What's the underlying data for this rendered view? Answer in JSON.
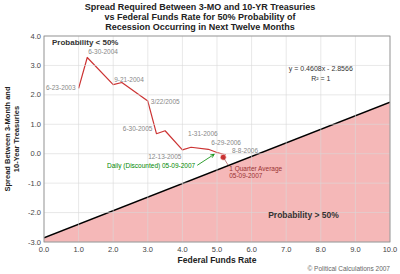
{
  "chart_data": {
    "type": "line",
    "title": "Spread Required Between 3-MO and 10-YR Treasuries\nvs Federal Funds Rate for 50% Probability of\nRecession Occurring in Next Twelve Months",
    "xlabel": "Federal Funds Rate",
    "ylabel": "Spread Between 3-Month and\n10-Year Treasuries",
    "xlim": [
      0.0,
      10.0
    ],
    "ylim": [
      -3.0,
      4.0
    ],
    "xticks": [
      {
        "value": 0.0,
        "label": "0.0"
      },
      {
        "value": 1.0,
        "label": "1.0"
      },
      {
        "value": 2.0,
        "label": "2.0"
      },
      {
        "value": 3.0,
        "label": "3.0"
      },
      {
        "value": 4.0,
        "label": "4.0"
      },
      {
        "value": 5.0,
        "label": "5.0"
      },
      {
        "value": 6.0,
        "label": "6.0"
      },
      {
        "value": 7.0,
        "label": "7.0"
      },
      {
        "value": 8.0,
        "label": "8.0"
      },
      {
        "value": 9.0,
        "label": "9.0"
      },
      {
        "value": 10.0,
        "label": "10.0"
      }
    ],
    "yticks": [
      {
        "value": -3.0,
        "label": "-3.0"
      },
      {
        "value": -2.0,
        "label": "-2.0"
      },
      {
        "value": -1.0,
        "label": "-1.0"
      },
      {
        "value": 0.0,
        "label": "0.0"
      },
      {
        "value": 1.0,
        "label": "1.0"
      },
      {
        "value": 2.0,
        "label": "2.0"
      },
      {
        "value": 3.0,
        "label": "3.0"
      },
      {
        "value": 4.0,
        "label": "4.0"
      }
    ],
    "grid": true,
    "series": [
      {
        "type": "area",
        "color": "#f5b8b8",
        "x": [
          0.0,
          10.0
        ],
        "values": [
          -2.8566,
          1.7514
        ]
      },
      {
        "type": "line",
        "color": "#000000",
        "x": [
          0.0,
          10.0
        ],
        "values": [
          -2.8566,
          1.7514
        ]
      },
      {
        "type": "line",
        "color": "#cc3333",
        "x": [
          1.0,
          1.25,
          2.0,
          2.25,
          3.0,
          3.25,
          3.5,
          4.0,
          4.25,
          4.75,
          5.0,
          5.25
        ],
        "values": [
          2.22,
          3.27,
          2.35,
          2.42,
          1.79,
          0.68,
          0.78,
          0.13,
          0.22,
          0.15,
          0.04,
          -0.04
        ],
        "point_labels": [
          "6-23-2003",
          "6-30-2004",
          "9-21-2004",
          null,
          "3/22/2005",
          "6-30-2005",
          null,
          "12-13-2005",
          "1-31-2006",
          "6-29-2006",
          "8-8-2006",
          null
        ]
      },
      {
        "type": "scatter",
        "color": "#cc3333",
        "marker": "circle",
        "x": [
          5.18
        ],
        "values": [
          -0.12
        ],
        "point_labels": [
          "1 Quarter Average\n05-09-2007"
        ]
      }
    ],
    "annotations": [
      {
        "text": "Daily (Discounted) 05-09-2007",
        "x": 4.92,
        "y": -0.02,
        "color": "#008800"
      }
    ],
    "equation": "y = 0.4608x - 2.8566",
    "r_squared": "R² = 1",
    "region_labels": [
      "Probability < 50%",
      "Probability > 50%"
    ],
    "footer": "© Political Calculations 2007"
  }
}
